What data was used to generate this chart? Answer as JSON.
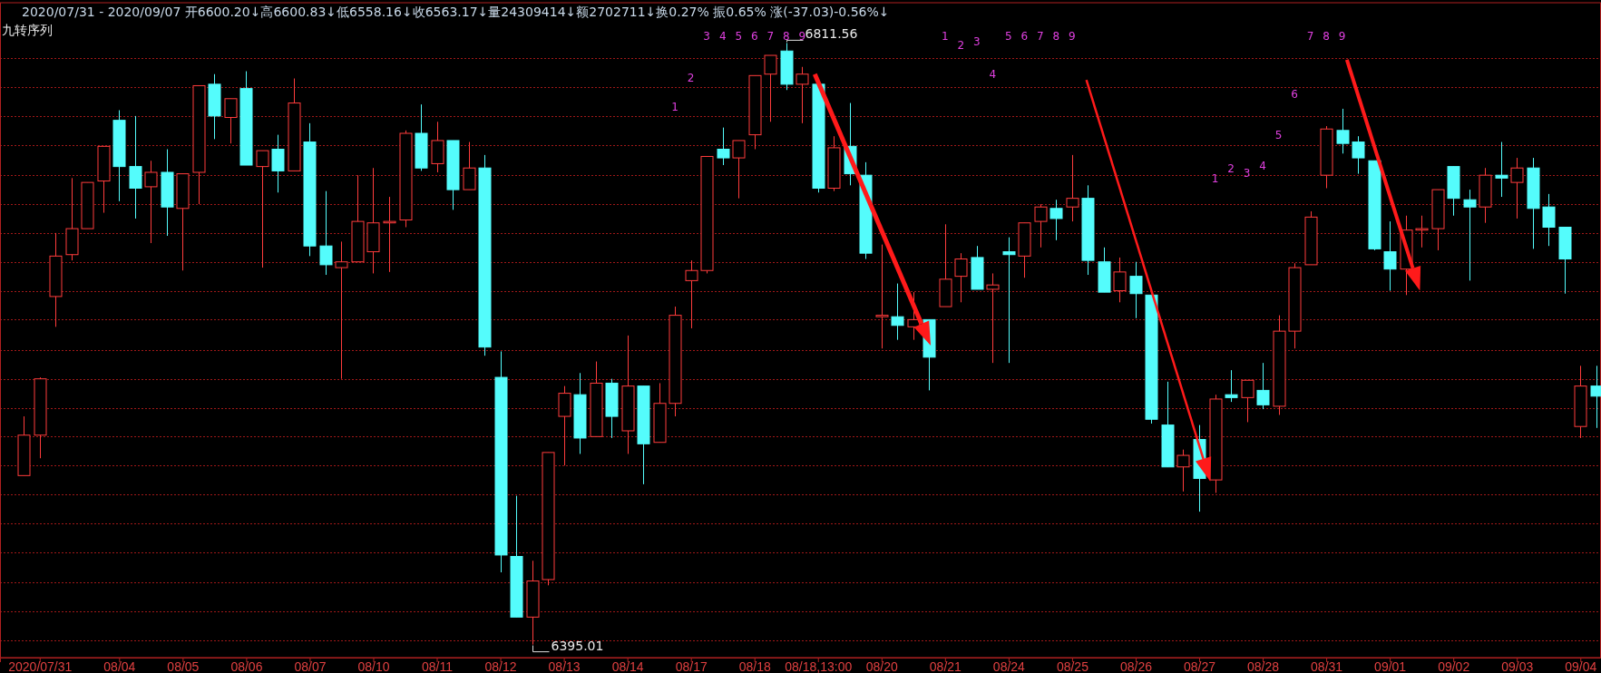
{
  "chart_data": {
    "type": "candlestick",
    "title": "2020/07/31 - 2020/09/07 开6600.20↓高6600.83↓低6558.16↓收6563.17↓量24309414↓额2702711↓换0.27% 振0.65% 涨(-37.03)-0.56%↓",
    "subtitle": "九转序列",
    "categories": [
      null,
      "2020/07/31",
      null,
      null,
      null,
      null,
      "08/04",
      null,
      null,
      null,
      "08/05",
      null,
      null,
      null,
      "08/06",
      null,
      null,
      null,
      "08/07",
      null,
      null,
      null,
      "08/10",
      null,
      null,
      null,
      "08/11",
      null,
      null,
      null,
      "08/12",
      null,
      null,
      null,
      "08/13",
      null,
      null,
      null,
      "08/14",
      null,
      null,
      null,
      "08/17",
      null,
      null,
      null,
      "08/18",
      null,
      null,
      null,
      "08/18,13:00",
      null,
      null,
      null,
      "08/20",
      null,
      null,
      null,
      "08/21",
      null,
      null,
      null,
      "08/24",
      null,
      null,
      null,
      "08/25",
      null,
      null,
      null,
      "08/26",
      null,
      null,
      null,
      "08/27",
      null,
      null,
      null,
      "08/28",
      null,
      null,
      null,
      "08/31",
      null,
      null,
      null,
      "09/01",
      null,
      null,
      null,
      "09/02",
      null,
      null,
      null,
      "09/03",
      null,
      null,
      null,
      "09/04",
      null
    ],
    "ohlc": [
      [
        6512,
        6553,
        6512,
        6540
      ],
      [
        6540,
        6580,
        6524,
        6579
      ],
      [
        6636,
        6680,
        6615,
        6664
      ],
      [
        6665,
        6718,
        6661,
        6683
      ],
      [
        6683,
        6715,
        6683,
        6715
      ],
      [
        6716,
        6740,
        6694,
        6740
      ],
      [
        6758,
        6765,
        6702,
        6726
      ],
      [
        6726,
        6761,
        6690,
        6711
      ],
      [
        6712,
        6730,
        6673,
        6722
      ],
      [
        6722,
        6738,
        6678,
        6698
      ],
      [
        6697,
        6721,
        6654,
        6721
      ],
      [
        6722,
        6782,
        6700,
        6782
      ],
      [
        6783,
        6790,
        6745,
        6761
      ],
      [
        6760,
        6773,
        6742,
        6773
      ],
      [
        6780,
        6792,
        6727,
        6727
      ],
      [
        6726,
        6737,
        6656,
        6737
      ],
      [
        6738,
        6748,
        6708,
        6723
      ],
      [
        6723,
        6787,
        6723,
        6770
      ],
      [
        6743,
        6756,
        6664,
        6671
      ],
      [
        6671,
        6709,
        6651,
        6658
      ],
      [
        6656,
        6674,
        6579,
        6660
      ],
      [
        6660,
        6720,
        6660,
        6688
      ],
      [
        6667,
        6725,
        6652,
        6687
      ],
      [
        6687,
        6705,
        6653,
        6688
      ],
      [
        6689,
        6751,
        6684,
        6749
      ],
      [
        6749,
        6769,
        6723,
        6725
      ],
      [
        6728,
        6757,
        6722,
        6744
      ],
      [
        6744,
        6744,
        6696,
        6710
      ],
      [
        6710,
        6743,
        6710,
        6725
      ],
      [
        6725,
        6734,
        6595,
        6601
      ],
      [
        6580,
        6598,
        6445,
        6457
      ],
      [
        6456,
        6498,
        6414,
        6414
      ],
      [
        6414,
        6453,
        6395.01,
        6439
      ],
      [
        6440,
        6528,
        6436,
        6528
      ],
      [
        6553,
        6574,
        6519,
        6569
      ],
      [
        6568,
        6583,
        6527,
        6538
      ],
      [
        6539,
        6591,
        6539,
        6576
      ],
      [
        6576,
        6579,
        6538,
        6553
      ],
      [
        6543,
        6609,
        6527,
        6574
      ],
      [
        6574,
        6574,
        6506,
        6534
      ],
      [
        6535,
        6576,
        6535,
        6562
      ],
      [
        6562,
        6629,
        6553,
        6623
      ],
      [
        6647,
        6661,
        6614,
        6654
      ],
      [
        6654,
        6733,
        6652,
        6733
      ],
      [
        6738,
        6753,
        6727,
        6732
      ],
      [
        6732,
        6744,
        6704,
        6744
      ],
      [
        6748,
        6789,
        6738,
        6789
      ],
      [
        6790,
        6803,
        6757,
        6803
      ],
      [
        6806,
        6811.56,
        6779,
        6783
      ],
      [
        6783,
        6795,
        6756,
        6790
      ],
      [
        6783,
        6783,
        6708,
        6711
      ],
      [
        6711,
        6747,
        6709,
        6739
      ],
      [
        6740,
        6770,
        6713,
        6721
      ],
      [
        6720,
        6729,
        6662,
        6666
      ],
      [
        6622,
        6672,
        6600,
        6623
      ],
      [
        6622,
        6645,
        6606,
        6616
      ],
      [
        6615,
        6639,
        6606,
        6620
      ],
      [
        6620,
        6620,
        6571,
        6594
      ],
      [
        6629,
        6686,
        6629,
        6648
      ],
      [
        6650,
        6666,
        6632,
        6662
      ],
      [
        6663,
        6671,
        6641,
        6641
      ],
      [
        6641,
        6652,
        6590,
        6644
      ],
      [
        6667,
        6677,
        6590,
        6665
      ],
      [
        6664,
        6687,
        6649,
        6687
      ],
      [
        6688,
        6700,
        6670,
        6698
      ],
      [
        6697,
        6703,
        6675,
        6690
      ],
      [
        6698,
        6734,
        6688,
        6704
      ],
      [
        6704,
        6713,
        6651,
        6661
      ],
      [
        6660,
        6670,
        6639,
        6639
      ],
      [
        6640,
        6663,
        6632,
        6653
      ],
      [
        6650,
        6660,
        6621,
        6638
      ],
      [
        6637,
        6637,
        6548,
        6551
      ],
      [
        6547,
        6577,
        6518,
        6518
      ],
      [
        6518,
        6530,
        6501,
        6526
      ],
      [
        6537,
        6547,
        6487,
        6510
      ],
      [
        6509,
        6568,
        6500,
        6565
      ],
      [
        6568,
        6585,
        6563,
        6566
      ],
      [
        6566,
        6578,
        6549,
        6578
      ],
      [
        6571,
        6590,
        6558,
        6561
      ],
      [
        6560,
        6623,
        6554,
        6612
      ],
      [
        6612,
        6659,
        6600,
        6656
      ],
      [
        6658,
        6695,
        6658,
        6691
      ],
      [
        6720,
        6754,
        6711,
        6752
      ],
      [
        6751,
        6766,
        6735,
        6742
      ],
      [
        6743,
        6747,
        6721,
        6732
      ],
      [
        6730,
        6730,
        6668,
        6669
      ],
      [
        6667,
        6688,
        6640,
        6655
      ],
      [
        6655,
        6692,
        6637,
        6682
      ],
      [
        6682,
        6692,
        6670,
        6683
      ],
      [
        6683,
        6710,
        6668,
        6710
      ],
      [
        6726,
        6726,
        6692,
        6704
      ],
      [
        6703,
        6710,
        6647,
        6698
      ],
      [
        6698,
        6725,
        6687,
        6720
      ],
      [
        6720,
        6743,
        6705,
        6718
      ],
      [
        6715,
        6732,
        6690,
        6725
      ],
      [
        6725,
        6732,
        6669,
        6697
      ],
      [
        6698,
        6707,
        6671,
        6684
      ],
      [
        6684,
        6684,
        6638,
        6662
      ],
      [
        6546,
        6588,
        6538,
        6574
      ],
      [
        6574,
        6588,
        6545,
        6567
      ]
    ],
    "yticks": [
      {
        "value": 6801,
        "label": null
      },
      {
        "value": 6781,
        "label": null
      },
      {
        "value": 6761,
        "label": null
      },
      {
        "value": 6741,
        "label": null
      },
      {
        "value": 6720,
        "label": null
      },
      {
        "value": 6700,
        "label": null
      },
      {
        "value": 6680,
        "label": null
      },
      {
        "value": 6660,
        "label": null
      },
      {
        "value": 6640,
        "label": null
      },
      {
        "value": 6620,
        "label": null
      },
      {
        "value": 6599,
        "label": null
      },
      {
        "value": 6579,
        "label": null
      },
      {
        "value": 6559,
        "label": null
      },
      {
        "value": 6539,
        "label": null
      },
      {
        "value": 6519,
        "label": null
      },
      {
        "value": 6499,
        "label": null
      },
      {
        "value": 6479,
        "label": null
      },
      {
        "value": 6459,
        "label": null
      },
      {
        "value": 6438,
        "label": null
      },
      {
        "value": 6418,
        "label": null
      },
      {
        "value": 6398,
        "label": null
      }
    ],
    "grid": "y",
    "tick_labels": "x",
    "annotations": [
      "6811.56",
      "6395.01",
      "1",
      "2",
      "3",
      "4",
      "5",
      "6",
      "7",
      "8",
      "9",
      "1",
      "2",
      "3",
      "4",
      "5",
      "6",
      "7",
      "8",
      "9",
      "1",
      "2",
      "3",
      "4",
      "5",
      "6",
      "7",
      "8",
      "9"
    ]
  }
}
